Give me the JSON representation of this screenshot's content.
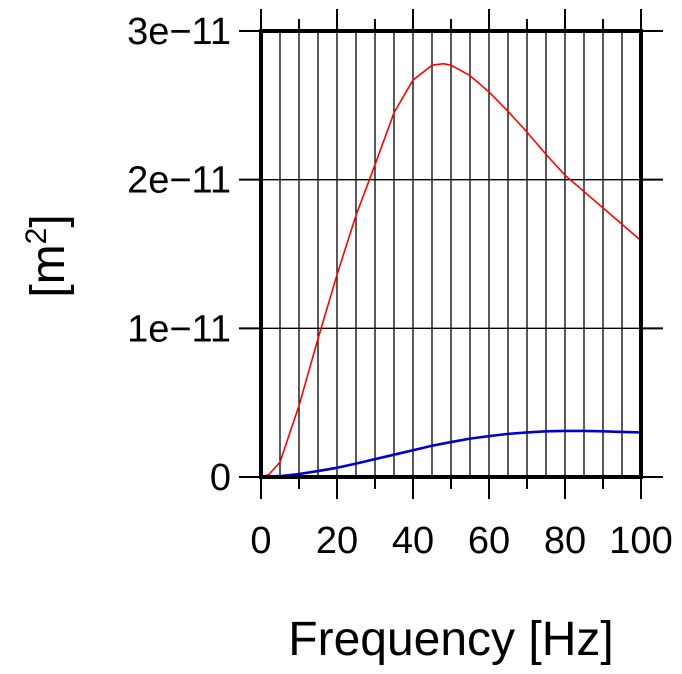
{
  "chart_data": {
    "type": "line",
    "xlabel": "Frequency [Hz]",
    "ylabel_prefix": "[m",
    "ylabel_sup": "2",
    "ylabel_suffix": "]",
    "xlim": [
      0,
      100
    ],
    "ylim": [
      0,
      3e-11
    ],
    "x_ticks": [
      {
        "value": 0,
        "label": "0"
      },
      {
        "value": 20,
        "label": "20"
      },
      {
        "value": 40,
        "label": "40"
      },
      {
        "value": 60,
        "label": "60"
      },
      {
        "value": 80,
        "label": "80"
      },
      {
        "value": 100,
        "label": "100"
      }
    ],
    "y_ticks": [
      {
        "value": 0,
        "label": "0"
      },
      {
        "value": 1e-11,
        "label": "1e−11"
      },
      {
        "value": 2e-11,
        "label": "2e−11"
      },
      {
        "value": 3e-11,
        "label": "3e−11"
      }
    ],
    "x_gridlines": [
      5,
      10,
      15,
      20,
      25,
      30,
      35,
      40,
      45,
      50,
      55,
      60,
      65,
      70,
      75,
      80,
      85,
      90,
      95
    ],
    "y_gridlines": [
      1e-11,
      2e-11
    ],
    "grid": true,
    "series": [
      {
        "color": "#ff0000",
        "x": [
          0,
          2,
          5,
          10,
          15,
          20,
          25,
          30,
          35,
          40,
          45,
          48,
          50,
          55,
          60,
          65,
          70,
          75,
          80,
          85,
          90,
          95,
          100
        ],
        "y": [
          0,
          1.5e-13,
          1e-12,
          4.8e-12,
          9.3e-12,
          1.36e-11,
          1.76e-11,
          2.1e-11,
          2.45e-11,
          2.67e-11,
          2.77e-11,
          2.78e-11,
          2.77e-11,
          2.7e-11,
          2.59e-11,
          2.46e-11,
          2.32e-11,
          2.17e-11,
          2.03e-11,
          1.92e-11,
          1.81e-11,
          1.7e-11,
          1.59e-11
        ]
      },
      {
        "color": "#0000cc",
        "x": [
          0,
          5,
          10,
          15,
          20,
          25,
          30,
          35,
          40,
          45,
          50,
          55,
          60,
          65,
          70,
          75,
          80,
          85,
          90,
          95,
          100
        ],
        "y": [
          0,
          6e-14,
          2e-13,
          4e-13,
          6.2e-13,
          9e-13,
          1.2e-12,
          1.5e-12,
          1.8e-12,
          2.1e-12,
          2.35e-12,
          2.58e-12,
          2.75e-12,
          2.9e-12,
          3e-12,
          3.07e-12,
          3.1e-12,
          3.1e-12,
          3.07e-12,
          3.03e-12,
          3e-12
        ]
      }
    ]
  }
}
